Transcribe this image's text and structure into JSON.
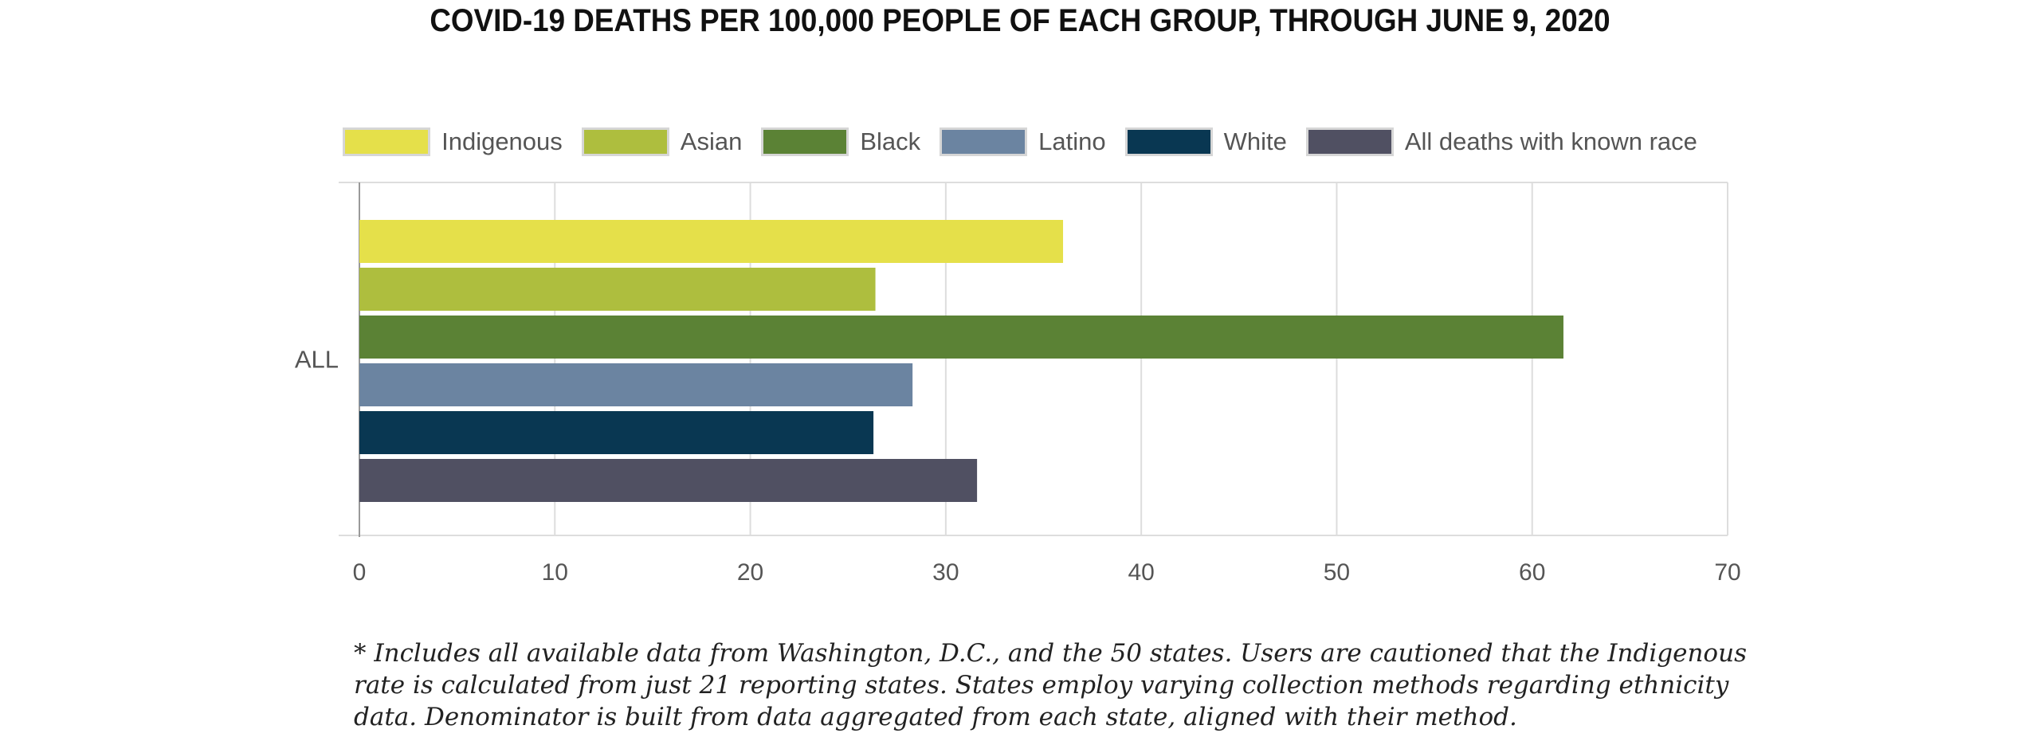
{
  "chart_data": {
    "type": "bar",
    "orientation": "horizontal",
    "title": "COVID-19 DEATHS PER 100,000 PEOPLE OF EACH GROUP, THROUGH JUNE 9, 2020",
    "categories": [
      "ALL"
    ],
    "series": [
      {
        "name": "Indigenous",
        "values": [
          36.0
        ],
        "color": "#e5e04a"
      },
      {
        "name": "Asian",
        "values": [
          26.4
        ],
        "color": "#aebe3e"
      },
      {
        "name": "Black",
        "values": [
          61.6
        ],
        "color": "#5b8235"
      },
      {
        "name": "Latino",
        "values": [
          28.3
        ],
        "color": "#6b84a1"
      },
      {
        "name": "White",
        "values": [
          26.3
        ],
        "color": "#093752"
      },
      {
        "name": "All deaths with known race",
        "values": [
          31.6
        ],
        "color": "#505062"
      }
    ],
    "xlim": [
      0,
      70
    ],
    "xticks": [
      "0",
      "10",
      "20",
      "30",
      "40",
      "50",
      "60",
      "70"
    ],
    "grid": true,
    "legend": "top"
  },
  "footnote": "* Includes all available data from Washington, D.C., and the 50 states. Users are cautioned that the Indigenous rate is calculated from just 21 reporting states. States employ varying collection methods regarding ethnicity data. Denominator is built from data aggregated from each state, aligned with their method."
}
